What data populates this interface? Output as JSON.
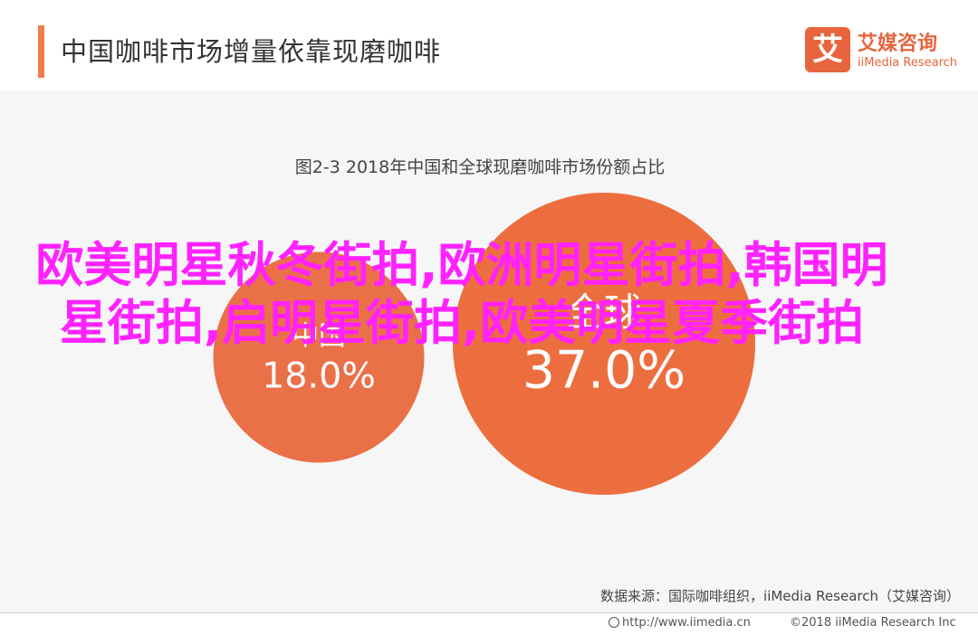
{
  "header": {
    "title": "中国咖啡市场增量依靠现磨咖啡",
    "logo_badge": "艾",
    "logo_cn": "艾媒咨询",
    "logo_en": "iiMedia Research"
  },
  "overlay": {
    "text": "欧美明星秋冬街拍,欧洲明星街拍,韩国明星街拍,启明星街拍,欧美明星夏季街拍"
  },
  "source": "数据来源：国际咖啡组织，iiMedia Research（艾媒咨询）",
  "footer": {
    "url": "http://www.iimedia.cn",
    "copyright": "©2018  iiMedia Research  Inc"
  },
  "colors": {
    "accent": "#f07c4c",
    "bubble_small": "#ea7048",
    "bubble_large": "#ec6e3e",
    "overlay": "#ff22ff"
  },
  "chart_data": {
    "type": "bubble",
    "title": "图2-3 2018年中国和全球现磨咖啡市场份额占比",
    "series": [
      {
        "name": "中国",
        "value": 18.0,
        "label": "18.0%"
      },
      {
        "name": "全球",
        "value": 37.0,
        "label": "37.0%"
      }
    ]
  }
}
